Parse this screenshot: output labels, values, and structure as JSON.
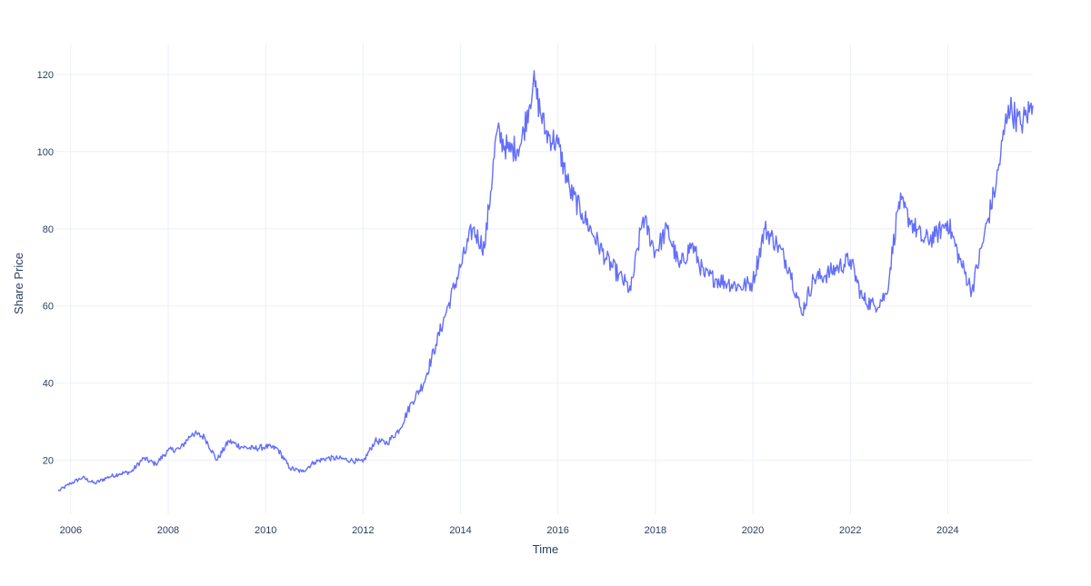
{
  "chart_data": {
    "type": "line",
    "title": "",
    "xlabel": "Time",
    "ylabel": "Share Price",
    "x_range": [
      "2005-09-15",
      "2025-09-30"
    ],
    "ylim": [
      6,
      128
    ],
    "x_ticks": [
      "2006",
      "2008",
      "2010",
      "2012",
      "2014",
      "2016",
      "2018",
      "2020",
      "2022",
      "2024"
    ],
    "y_ticks": [
      20,
      40,
      60,
      80,
      100,
      120
    ],
    "grid": true,
    "legend": "none",
    "line_color": "#636efa",
    "series": [
      {
        "x": [
          "2005-09-30",
          "2005-12-31",
          "2006-03-31",
          "2006-06-30",
          "2006-09-30",
          "2006-12-31",
          "2007-03-31",
          "2007-06-30",
          "2007-09-30",
          "2007-12-31",
          "2008-03-31",
          "2008-06-30",
          "2008-09-30",
          "2008-12-31",
          "2009-03-31",
          "2009-06-30",
          "2009-09-30",
          "2009-12-31",
          "2010-03-31",
          "2010-06-30",
          "2010-09-30",
          "2010-12-31",
          "2011-03-31",
          "2011-06-30",
          "2011-09-30",
          "2011-12-31",
          "2012-03-31",
          "2012-06-30",
          "2012-09-30",
          "2012-12-31",
          "2013-03-31",
          "2013-06-30",
          "2013-09-30",
          "2013-12-31",
          "2014-03-31",
          "2014-06-30",
          "2014-09-30",
          "2014-12-31",
          "2015-03-31",
          "2015-06-30",
          "2015-09-30",
          "2015-12-31",
          "2016-03-31",
          "2016-06-30",
          "2016-09-30",
          "2016-12-31",
          "2017-03-31",
          "2017-06-30",
          "2017-09-30",
          "2017-12-31",
          "2018-03-31",
          "2018-06-30",
          "2018-09-30",
          "2018-12-31",
          "2019-03-31",
          "2019-06-30",
          "2019-09-30",
          "2019-12-31",
          "2020-03-31",
          "2020-06-30",
          "2020-09-30",
          "2020-12-31",
          "2021-03-31",
          "2021-06-30",
          "2021-09-30",
          "2021-12-31",
          "2022-03-31",
          "2022-06-30",
          "2022-09-30",
          "2022-12-31",
          "2023-03-31",
          "2023-06-30",
          "2023-09-30",
          "2023-12-31",
          "2024-03-31",
          "2024-06-30",
          "2024-09-30",
          "2024-12-31",
          "2025-03-31",
          "2025-06-30",
          "2025-09-30"
        ],
        "y": [
          12,
          14,
          15.5,
          14,
          15.5,
          16.5,
          17,
          20.5,
          19,
          22.5,
          23,
          27,
          26,
          20,
          25,
          23.5,
          23,
          23.5,
          23,
          18,
          17,
          19.5,
          20.5,
          20.5,
          20,
          19.5,
          25,
          24.5,
          28,
          35,
          40,
          50,
          60,
          70,
          80,
          75,
          105,
          100,
          102,
          118,
          105,
          102,
          90,
          84,
          78,
          72,
          68,
          64,
          83,
          74,
          80,
          70,
          76,
          68,
          67,
          66,
          65,
          66,
          80,
          76,
          70,
          58,
          67,
          68,
          70,
          72,
          62,
          60,
          63,
          87,
          82,
          77,
          78,
          82,
          72,
          64,
          78,
          92,
          112,
          107,
          112
        ]
      }
    ]
  }
}
